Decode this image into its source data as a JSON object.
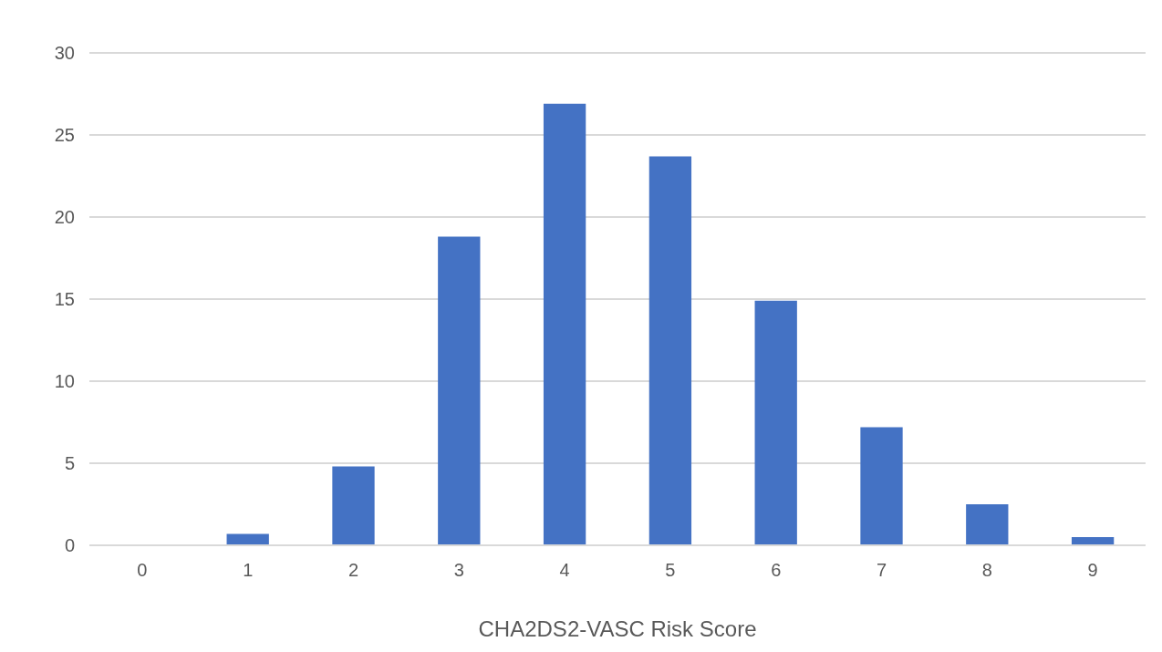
{
  "chart_data": {
    "type": "bar",
    "xlabel": "CHA2DS2-VASC Risk Score",
    "categories": [
      "0",
      "1",
      "2",
      "3",
      "4",
      "5",
      "6",
      "7",
      "8",
      "9"
    ],
    "values": [
      0,
      0.7,
      4.8,
      18.8,
      26.9,
      23.7,
      14.9,
      7.2,
      2.5,
      0.5
    ],
    "color": "#4472c4",
    "ylim": [
      0,
      30
    ],
    "yticks": [
      0,
      5,
      10,
      15,
      20,
      25,
      30
    ],
    "grid": "y"
  }
}
